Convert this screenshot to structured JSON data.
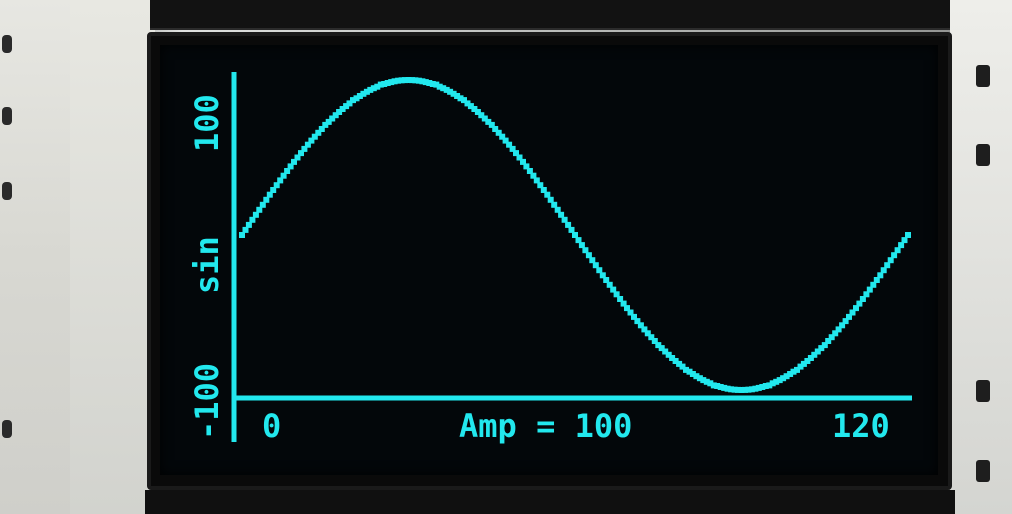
{
  "scene": {
    "description_color": "#22e8ee",
    "screen_bg": "#03070a"
  },
  "chart_data": {
    "type": "line",
    "x_label_start": "0",
    "x_label_end": "120",
    "y_label_top": "100",
    "y_label_bottom": "-100",
    "y_axis_label": "sin",
    "annotation": "Amp = 100",
    "xlim": [
      0,
      120
    ],
    "ylim": [
      -100,
      100
    ],
    "series": [
      {
        "values": [
          [
            0,
            0
          ],
          [
            5,
            26
          ],
          [
            10,
            50
          ],
          [
            15,
            71
          ],
          [
            20,
            87
          ],
          [
            25,
            97
          ],
          [
            30,
            100
          ],
          [
            35,
            97
          ],
          [
            40,
            87
          ],
          [
            45,
            71
          ],
          [
            50,
            50
          ],
          [
            55,
            26
          ],
          [
            60,
            0
          ],
          [
            65,
            -26
          ],
          [
            70,
            -50
          ],
          [
            75,
            -71
          ],
          [
            80,
            -87
          ],
          [
            85,
            -97
          ],
          [
            90,
            -100
          ],
          [
            95,
            -97
          ],
          [
            100,
            -87
          ],
          [
            105,
            -71
          ],
          [
            110,
            -50
          ],
          [
            115,
            -26
          ],
          [
            120,
            0
          ]
        ]
      }
    ],
    "color": "#22e8ee"
  }
}
